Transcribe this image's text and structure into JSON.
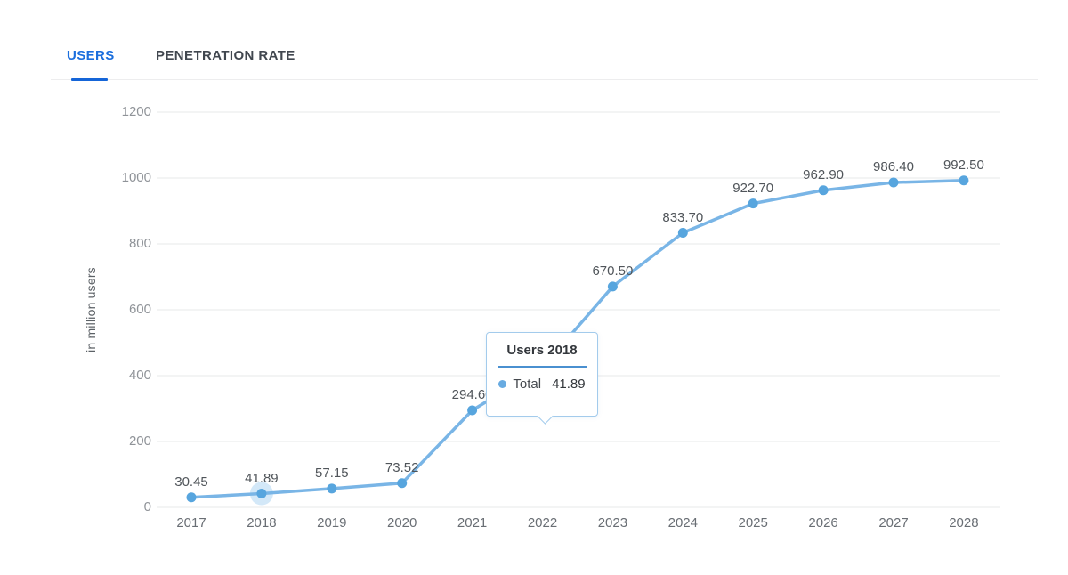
{
  "tabs": {
    "users": "USERS",
    "penetration_rate": "PENETRATION RATE"
  },
  "tooltip": {
    "title": "Users 2018",
    "series": "Total",
    "value": "41.89"
  },
  "chart_data": {
    "type": "line",
    "title": "",
    "xlabel": "",
    "ylabel": "in million users",
    "x": [
      "2017",
      "2018",
      "2019",
      "2020",
      "2021",
      "2022",
      "2023",
      "2024",
      "2025",
      "2026",
      "2027",
      "2028"
    ],
    "series": [
      {
        "name": "Total",
        "values": [
          30.45,
          41.89,
          57.15,
          73.52,
          294.6,
          425,
          670.5,
          833.7,
          922.7,
          962.9,
          986.4,
          992.5
        ]
      }
    ],
    "point_labels": [
      "30.45",
      "41.89",
      "57.15",
      "73.52",
      "294.60",
      null,
      "670.50",
      "833.70",
      "922.70",
      "962.90",
      "986.40",
      "992.50"
    ],
    "ylim": [
      0,
      1200
    ],
    "yticks": [
      0,
      200,
      400,
      600,
      800,
      1000,
      1200
    ],
    "grid": "horizontal",
    "legend": "none",
    "highlighted_point": "2018",
    "colors": {
      "line": "#79b5e6",
      "point": "#57a5de",
      "halo": "rgba(139,194,236,0.38)",
      "grid": "#e7e8e9",
      "accent_blue": "#1b6edd"
    }
  }
}
